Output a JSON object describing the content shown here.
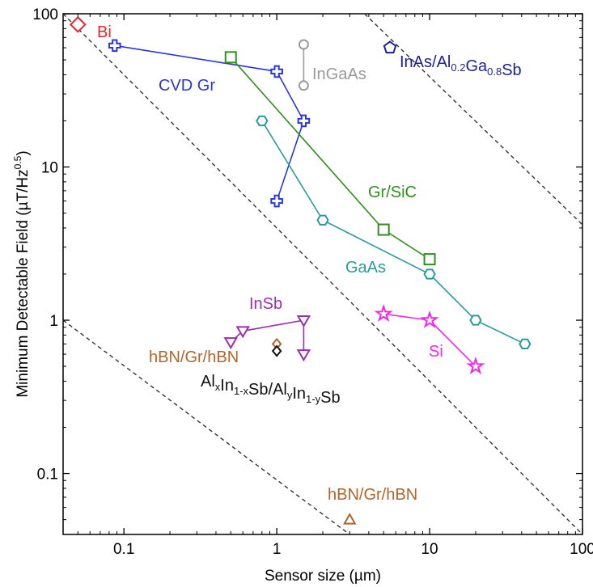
{
  "chart_data": {
    "type": "scatter",
    "xlabel": "Sensor size (µm)",
    "ylabel": {
      "main": "Minimum Detectable Field (µT/Hz",
      "sup": "0.5",
      "close": ")"
    },
    "x_scale": "log",
    "y_scale": "log",
    "xlim": [
      0.04,
      100
    ],
    "ylim": [
      0.04,
      100
    ],
    "x_ticks": [
      {
        "value": 0.1,
        "label": "0.1"
      },
      {
        "value": 1,
        "label": "1"
      },
      {
        "value": 10,
        "label": "10"
      },
      {
        "value": 100,
        "label": "100"
      }
    ],
    "y_ticks": [
      {
        "value": 0.1,
        "label": "0.1"
      },
      {
        "value": 1,
        "label": "1"
      },
      {
        "value": 10,
        "label": "10"
      },
      {
        "value": 100,
        "label": "100"
      }
    ],
    "reference_lines": [
      {
        "points": [
          [
            0.04,
            1.0
          ],
          [
            3.0,
            0.04
          ]
        ]
      },
      {
        "points": [
          [
            0.04,
            100
          ],
          [
            100,
            0.04
          ]
        ]
      },
      {
        "points": [
          [
            3.75,
            100
          ],
          [
            100,
            4.2
          ]
        ]
      }
    ],
    "series": [
      {
        "name": "Bi",
        "color": "#e8262a",
        "marker": "diamond",
        "connect": false,
        "points": [
          [
            0.05,
            85
          ]
        ],
        "label": [
          {
            "t": "Bi"
          }
        ]
      },
      {
        "name": "CVD Gr",
        "color": "#2c36d9",
        "marker": "cross",
        "connect": true,
        "points": [
          [
            0.087,
            62
          ],
          [
            1.0,
            42
          ],
          [
            1.5,
            20
          ],
          [
            1.0,
            6.0
          ]
        ],
        "label": [
          {
            "t": "CVD Gr"
          }
        ]
      },
      {
        "name": "InGaAs",
        "color": "#9a9a9a",
        "marker": "circle",
        "connect": true,
        "points": [
          [
            1.5,
            63
          ],
          [
            1.5,
            34
          ]
        ],
        "label": [
          {
            "t": "InGaAs"
          }
        ]
      },
      {
        "name": "InAs/Al0.2Ga0.8Sb",
        "color": "#1e2391",
        "marker": "pentagon",
        "connect": false,
        "points": [
          [
            5.5,
            60
          ]
        ],
        "label": [
          {
            "t": "InAs/Al"
          },
          {
            "t": "0.2",
            "sub": true
          },
          {
            "t": "Ga"
          },
          {
            "t": "0.8",
            "sub": true
          },
          {
            "t": "Sb"
          }
        ]
      },
      {
        "name": "Gr/SiC",
        "color": "#2f8f1d",
        "marker": "square",
        "connect": true,
        "points": [
          [
            0.5,
            52
          ],
          [
            5.0,
            3.9
          ],
          [
            10,
            2.5
          ]
        ],
        "label": [
          {
            "t": "Gr/SiC"
          }
        ]
      },
      {
        "name": "GaAs",
        "color": "#2a9a9f",
        "marker": "hexagon",
        "connect": true,
        "points": [
          [
            0.8,
            20
          ],
          [
            2.0,
            4.5
          ],
          [
            10,
            2.0
          ],
          [
            20,
            1.0
          ],
          [
            42,
            0.7
          ]
        ],
        "label": [
          {
            "t": "GaAs"
          }
        ]
      },
      {
        "name": "InSb",
        "color": "#9b2fae",
        "marker": "triangle-down",
        "connect": true,
        "points": [
          [
            0.5,
            0.72
          ],
          [
            0.6,
            0.85
          ],
          [
            1.5,
            1.0
          ],
          [
            1.5,
            0.6
          ]
        ],
        "label": [
          {
            "t": "InSb"
          }
        ]
      },
      {
        "name": "Si",
        "color": "#f227e6",
        "marker": "star",
        "connect": true,
        "points": [
          [
            5.0,
            1.1
          ],
          [
            10,
            1.0
          ],
          [
            20,
            0.5
          ]
        ],
        "label": [
          {
            "t": "Si"
          }
        ]
      },
      {
        "name": "hBN/Gr/hBN",
        "color": "#b0652a",
        "marker": "diamond-small",
        "connect": false,
        "points": [
          [
            1.0,
            0.7
          ]
        ],
        "label": [
          {
            "t": "hBN/Gr/hBN"
          }
        ]
      },
      {
        "name": "AlxIn1-xSb/AlyIn1-ySb",
        "color": "#111111",
        "marker": "diamond-small",
        "connect": false,
        "points": [
          [
            1.0,
            0.63
          ]
        ],
        "label": [
          {
            "t": "Al"
          },
          {
            "t": "x",
            "sub": true
          },
          {
            "t": "In"
          },
          {
            "t": "1-x",
            "sub": true
          },
          {
            "t": "Sb/Al"
          },
          {
            "t": "y",
            "sub": true
          },
          {
            "t": "In"
          },
          {
            "t": "1-y",
            "sub": true
          },
          {
            "t": "Sb"
          }
        ]
      },
      {
        "name": "hBN/Gr/hBN",
        "color": "#b0652a",
        "marker": "triangle-up",
        "connect": false,
        "points": [
          [
            3.0,
            0.05
          ]
        ],
        "label": [
          {
            "t": "hBN/Gr/hBN"
          }
        ]
      }
    ]
  }
}
